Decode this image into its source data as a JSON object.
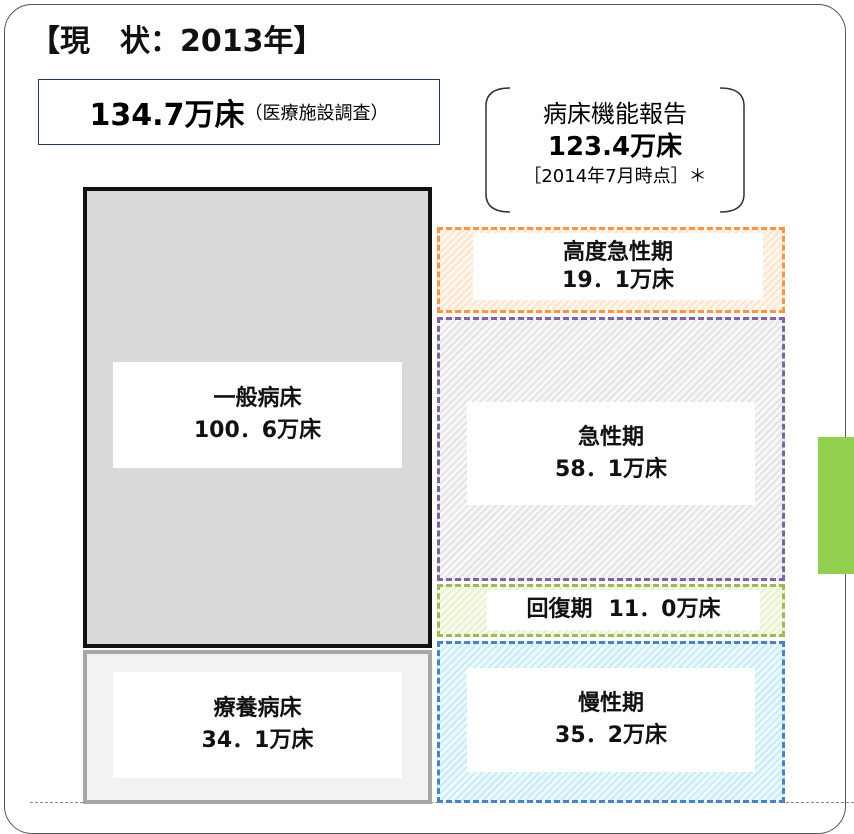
{
  "header": {
    "title": "【現　状：2013年】"
  },
  "total": {
    "value": "134.7万床",
    "source": "（医療施設調査）"
  },
  "report": {
    "title": "病床機能報告",
    "value": "123.4万床",
    "note": "［2014年7月時点］＊"
  },
  "left_blocks": [
    {
      "label": "一般病床",
      "value": "100．6万床"
    },
    {
      "label": "療養病床",
      "value": "34．1万床"
    }
  ],
  "right_blocks": [
    {
      "label": "高度急性期",
      "value": "19．1万床"
    },
    {
      "label": "急性期",
      "value": "58．1万床"
    },
    {
      "label": "回復期",
      "value": "11．0万床"
    },
    {
      "label": "慢性期",
      "value": "35．2万床"
    }
  ]
}
